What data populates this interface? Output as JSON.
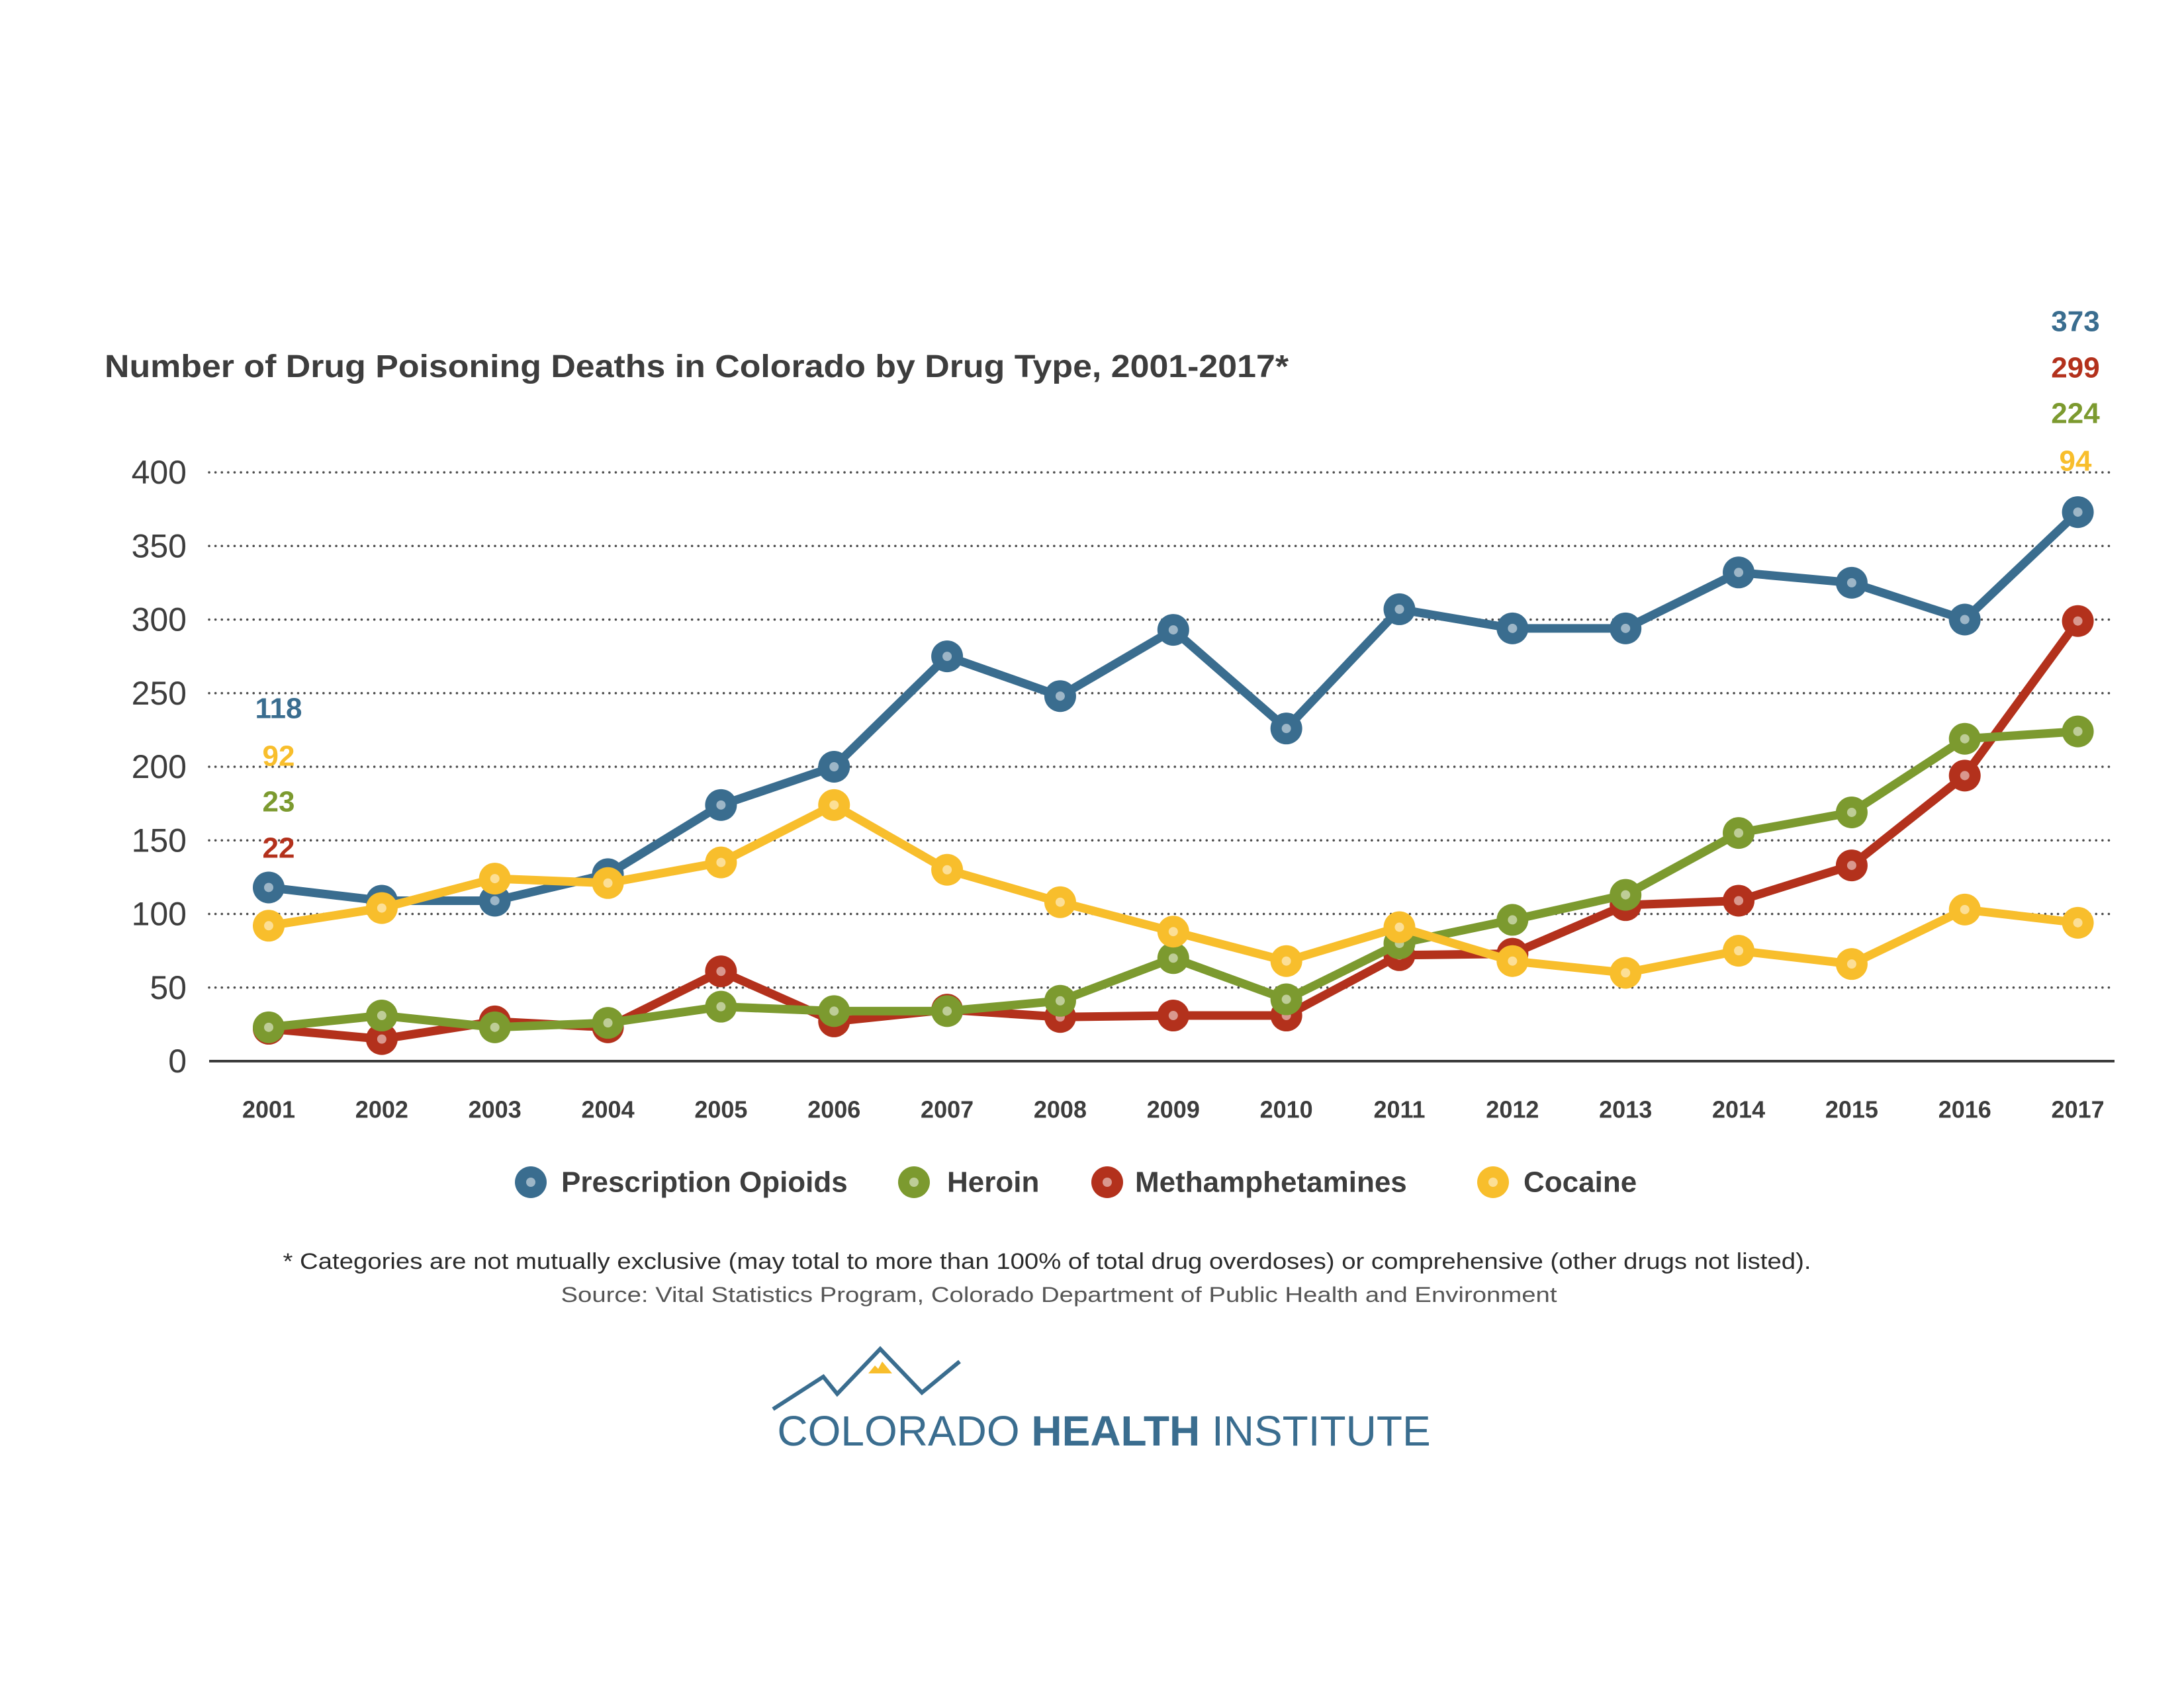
{
  "chart_data": {
    "type": "line",
    "title": "Number of Drug Poisoning Deaths in Colorado by Drug Type, 2001-2017*",
    "xlabel": "",
    "ylabel": "",
    "categories": [
      "2001",
      "2002",
      "2003",
      "2004",
      "2005",
      "2006",
      "2007",
      "2008",
      "2009",
      "2010",
      "2011",
      "2012",
      "2013",
      "2014",
      "2015",
      "2016",
      "2017"
    ],
    "ylim": [
      0,
      400
    ],
    "yticks": [
      0,
      50,
      100,
      150,
      200,
      250,
      300,
      350,
      400
    ],
    "grid": true,
    "legend_position": "bottom",
    "series": [
      {
        "name": "Prescription Opioids",
        "color": "#3a6d8f",
        "values": [
          118,
          109,
          109,
          127,
          174,
          200,
          275,
          248,
          293,
          226,
          307,
          294,
          294,
          332,
          325,
          300,
          373
        ]
      },
      {
        "name": "Heroin",
        "color": "#7c9a2f",
        "values": [
          23,
          31,
          23,
          26,
          37,
          34,
          34,
          41,
          70,
          42,
          80,
          96,
          113,
          155,
          169,
          219,
          224
        ]
      },
      {
        "name": "Methamphetamines",
        "color": "#b3311c",
        "values": [
          22,
          15,
          27,
          23,
          61,
          27,
          35,
          30,
          31,
          31,
          72,
          73,
          106,
          109,
          133,
          194,
          299
        ]
      },
      {
        "name": "Cocaine",
        "color": "#f8be2c",
        "values": [
          92,
          104,
          124,
          121,
          135,
          174,
          130,
          108,
          88,
          68,
          91,
          68,
          60,
          75,
          66,
          103,
          94
        ]
      }
    ],
    "annotations": {
      "start": [
        {
          "text": "118",
          "series": "Prescription Opioids"
        },
        {
          "text": "92",
          "series": "Cocaine"
        },
        {
          "text": "23",
          "series": "Heroin"
        },
        {
          "text": "22",
          "series": "Methamphetamines"
        }
      ],
      "end": [
        {
          "text": "373",
          "series": "Prescription Opioids"
        },
        {
          "text": "299",
          "series": "Methamphetamines"
        },
        {
          "text": "224",
          "series": "Heroin"
        },
        {
          "text": "94",
          "series": "Cocaine"
        }
      ]
    }
  },
  "footnote": "* Categories are not mutually exclusive (may total to more than 100% of total drug overdoses) or comprehensive (other drugs not listed).",
  "source": "Source: Vital Statistics Program, Colorado Department of Public Health and Environment",
  "logo": {
    "word1": "COLORADO",
    "word2": "HEALTH",
    "word3": "INSTITUTE",
    "accent_color": "#f8be2c",
    "icon": "mountain-range-icon"
  }
}
